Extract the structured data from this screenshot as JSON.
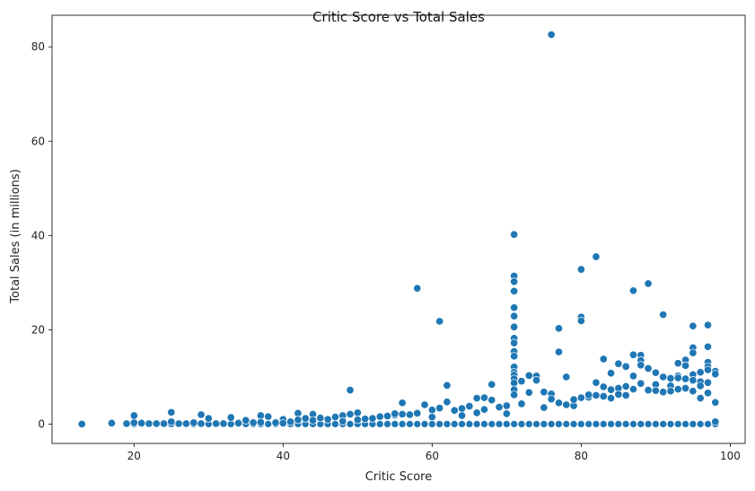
{
  "chart_data": {
    "type": "scatter",
    "title": "Critic Score vs Total Sales",
    "xlabel": "Critic Score",
    "ylabel": "Total Sales (in millions)",
    "xlim": [
      9,
      102
    ],
    "ylim": [
      -4.1,
      86.7
    ],
    "xticks": [
      20,
      40,
      60,
      80,
      100
    ],
    "yticks": [
      0,
      20,
      40,
      60,
      80
    ],
    "grid": false,
    "marker_color": "#1f77b4",
    "marker_edge_color": "#ffffff",
    "x": [
      13,
      17,
      19,
      20,
      20,
      21,
      22,
      23,
      24,
      25,
      25,
      26,
      27,
      28,
      29,
      29,
      30,
      31,
      32,
      33,
      33,
      34,
      35,
      36,
      37,
      37,
      38,
      39,
      40,
      40,
      41,
      42,
      42,
      43,
      44,
      44,
      45,
      46,
      47,
      48,
      48,
      49,
      49,
      50,
      50,
      51,
      52,
      53,
      54,
      55,
      55,
      56,
      56,
      57,
      58,
      58,
      59,
      60,
      60,
      61,
      61,
      62,
      62,
      63,
      64,
      64,
      65,
      66,
      66,
      67,
      67,
      68,
      68,
      69,
      70,
      70,
      71,
      71,
      71,
      71,
      71,
      71,
      71,
      71,
      71,
      71,
      71,
      71,
      71,
      71,
      71,
      71,
      71,
      71,
      72,
      72,
      73,
      73,
      74,
      74,
      75,
      75,
      76,
      76,
      76,
      77,
      77,
      77,
      78,
      78,
      79,
      79,
      80,
      80,
      80,
      80,
      81,
      81,
      82,
      82,
      82,
      83,
      83,
      83,
      84,
      84,
      84,
      85,
      85,
      85,
      86,
      86,
      86,
      87,
      87,
      87,
      87,
      88,
      88,
      88,
      88,
      89,
      89,
      89,
      90,
      90,
      90,
      91,
      91,
      91,
      92,
      92,
      92,
      93,
      93,
      93,
      93,
      94,
      94,
      94,
      94,
      95,
      95,
      95,
      95,
      95,
      95,
      96,
      96,
      96,
      96,
      97,
      97,
      97,
      97,
      97,
      97,
      97,
      98,
      98,
      98,
      98
    ],
    "y": [
      0.0,
      0.2,
      0.1,
      0.3,
      1.8,
      0.2,
      0.1,
      0.1,
      0.1,
      2.5,
      0.5,
      0.1,
      0.1,
      0.3,
      0.1,
      2.0,
      1.2,
      0.1,
      0.1,
      1.5,
      1.4,
      0.2,
      0.8,
      0.3,
      1.8,
      0.4,
      1.6,
      0.3,
      1.0,
      0.2,
      0.5,
      2.3,
      0.9,
      1.2,
      2.1,
      0.8,
      1.3,
      1.0,
      1.5,
      1.8,
      0.6,
      2.1,
      7.2,
      2.4,
      0.9,
      1.1,
      1.2,
      1.6,
      1.7,
      1.9,
      2.2,
      2.1,
      4.5,
      2.0,
      28.8,
      2.3,
      4.1,
      3.0,
      1.5,
      21.8,
      3.4,
      8.2,
      4.7,
      2.9,
      3.3,
      1.8,
      3.8,
      5.5,
      2.4,
      5.6,
      3.1,
      8.4,
      5.1,
      3.6,
      3.9,
      2.2,
      40.2,
      31.4,
      30.2,
      28.2,
      24.7,
      22.9,
      20.6,
      18.2,
      17.2,
      15.4,
      14.4,
      12.1,
      11.0,
      10.4,
      9.6,
      8.7,
      7.3,
      6.2,
      9.1,
      4.3,
      10.3,
      6.7,
      10.2,
      9.3,
      3.5,
      6.8,
      82.6,
      6.4,
      5.3,
      20.3,
      15.3,
      4.5,
      10.0,
      4.1,
      3.9,
      5.2,
      32.8,
      22.7,
      21.9,
      5.6,
      5.7,
      6.2,
      35.5,
      8.8,
      6.1,
      13.8,
      7.9,
      5.9,
      7.3,
      10.8,
      5.5,
      12.8,
      7.6,
      6.3,
      12.2,
      8.0,
      6.1,
      28.3,
      14.7,
      10.2,
      7.4,
      14.6,
      13.5,
      12.5,
      8.6,
      29.8,
      11.8,
      7.2,
      10.9,
      8.4,
      7.1,
      23.2,
      10.0,
      6.8,
      9.7,
      8.1,
      7.0,
      12.9,
      10.2,
      9.8,
      7.4,
      13.6,
      12.4,
      9.6,
      7.6,
      20.8,
      16.2,
      15.1,
      10.5,
      9.3,
      7.0,
      9.0,
      8.1,
      11.0,
      5.5,
      21.0,
      16.4,
      13.1,
      12.2,
      11.5,
      8.8,
      6.6,
      11.2,
      10.6,
      4.6,
      0.5
    ]
  }
}
